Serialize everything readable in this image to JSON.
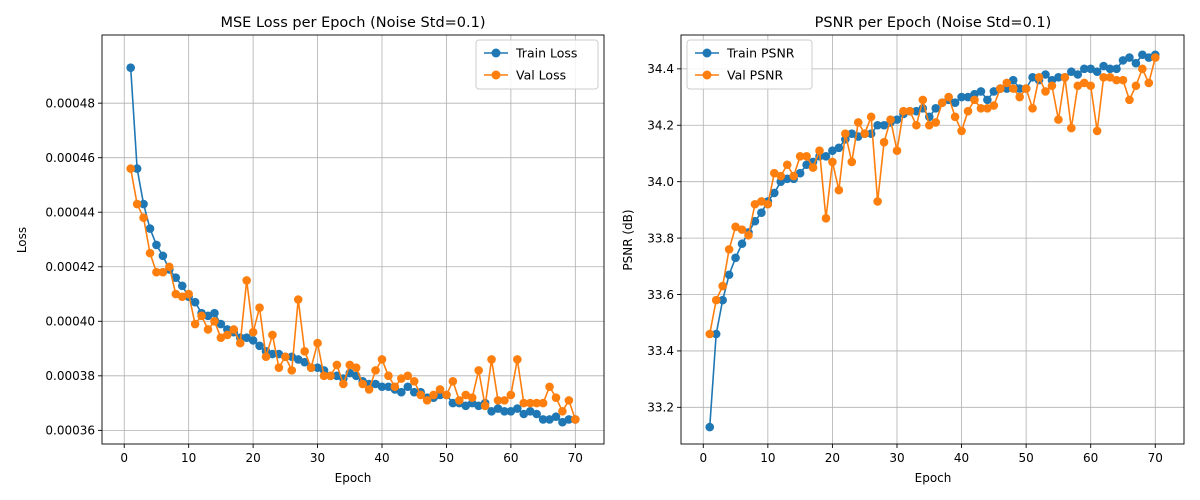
{
  "colors": {
    "train": "#1f77b4",
    "val": "#ff7f0e"
  },
  "chart_data": [
    {
      "type": "line",
      "title": "MSE Loss per Epoch (Noise Std=0.1)",
      "xlabel": "Epoch",
      "ylabel": "Loss",
      "xlim": [
        -3.45,
        74.45
      ],
      "ylim": [
        0.000355,
        0.000505
      ],
      "xticks": [
        0,
        10,
        20,
        30,
        40,
        50,
        60,
        70
      ],
      "yticks": [
        0.00036,
        0.00038,
        0.0004,
        0.00042,
        0.00044,
        0.00046,
        0.00048
      ],
      "ytick_labels": [
        "0.00036",
        "0.00038",
        "0.00040",
        "0.00042",
        "0.00044",
        "0.00046",
        "0.00048"
      ],
      "grid": true,
      "legend_position": "upper right",
      "x": [
        1,
        2,
        3,
        4,
        5,
        6,
        7,
        8,
        9,
        10,
        11,
        12,
        13,
        14,
        15,
        16,
        17,
        18,
        19,
        20,
        21,
        22,
        23,
        24,
        25,
        26,
        27,
        28,
        29,
        30,
        31,
        32,
        33,
        34,
        35,
        36,
        37,
        38,
        39,
        40,
        41,
        42,
        43,
        44,
        45,
        46,
        47,
        48,
        49,
        50,
        51,
        52,
        53,
        54,
        55,
        56,
        57,
        58,
        59,
        60,
        61,
        62,
        63,
        64,
        65,
        66,
        67,
        68,
        69,
        70
      ],
      "series": [
        {
          "name": "Train Loss",
          "color_key": "train",
          "values": [
            0.000493,
            0.000456,
            0.000443,
            0.000434,
            0.000428,
            0.000424,
            0.000419,
            0.000416,
            0.000413,
            0.000409,
            0.000407,
            0.000403,
            0.000402,
            0.000403,
            0.000399,
            0.000397,
            0.000396,
            0.000394,
            0.000394,
            0.000393,
            0.000391,
            0.000389,
            0.000388,
            0.000388,
            0.000387,
            0.000387,
            0.000386,
            0.000385,
            0.000383,
            0.000383,
            0.000382,
            0.00038,
            0.00038,
            0.000379,
            0.000381,
            0.00038,
            0.000378,
            0.000377,
            0.000377,
            0.000376,
            0.000376,
            0.000375,
            0.000374,
            0.000376,
            0.000374,
            0.000374,
            0.000372,
            0.000372,
            0.000373,
            0.000373,
            0.00037,
            0.00037,
            0.000369,
            0.00037,
            0.000369,
            0.00037,
            0.000367,
            0.000368,
            0.000367,
            0.000367,
            0.000368,
            0.000366,
            0.000367,
            0.000366,
            0.000364,
            0.000364,
            0.000365,
            0.000363,
            0.000364,
            0.000364
          ]
        },
        {
          "name": "Val Loss",
          "color_key": "val",
          "values": [
            0.000456,
            0.000443,
            0.000438,
            0.000425,
            0.000418,
            0.000418,
            0.00042,
            0.00041,
            0.000409,
            0.00041,
            0.000399,
            0.000402,
            0.000397,
            0.0004,
            0.000394,
            0.000395,
            0.000397,
            0.000392,
            0.000415,
            0.000396,
            0.000405,
            0.000387,
            0.000395,
            0.000383,
            0.000387,
            0.000382,
            0.000408,
            0.000389,
            0.000383,
            0.000392,
            0.00038,
            0.00038,
            0.000384,
            0.000377,
            0.000384,
            0.000383,
            0.000377,
            0.000375,
            0.000382,
            0.000386,
            0.00038,
            0.000376,
            0.000379,
            0.00038,
            0.000378,
            0.000373,
            0.000371,
            0.000373,
            0.000375,
            0.000373,
            0.000378,
            0.000371,
            0.000373,
            0.000372,
            0.000382,
            0.000369,
            0.000386,
            0.000371,
            0.000371,
            0.000373,
            0.000386,
            0.00037,
            0.00037,
            0.00037,
            0.00037,
            0.000376,
            0.000372,
            0.000367,
            0.000371,
            0.000364
          ]
        }
      ]
    },
    {
      "type": "line",
      "title": "PSNR per Epoch (Noise Std=0.1)",
      "xlabel": "Epoch",
      "ylabel": "PSNR (dB)",
      "xlim": [
        -3.45,
        74.45
      ],
      "ylim": [
        33.07,
        34.52
      ],
      "xticks": [
        0,
        10,
        20,
        30,
        40,
        50,
        60,
        70
      ],
      "yticks": [
        33.2,
        33.4,
        33.6,
        33.8,
        34.0,
        34.2,
        34.4
      ],
      "ytick_labels": [
        "33.2",
        "33.4",
        "33.6",
        "33.8",
        "34.0",
        "34.2",
        "34.4"
      ],
      "grid": true,
      "legend_position": "upper left",
      "x": [
        1,
        2,
        3,
        4,
        5,
        6,
        7,
        8,
        9,
        10,
        11,
        12,
        13,
        14,
        15,
        16,
        17,
        18,
        19,
        20,
        21,
        22,
        23,
        24,
        25,
        26,
        27,
        28,
        29,
        30,
        31,
        32,
        33,
        34,
        35,
        36,
        37,
        38,
        39,
        40,
        41,
        42,
        43,
        44,
        45,
        46,
        47,
        48,
        49,
        50,
        51,
        52,
        53,
        54,
        55,
        56,
        57,
        58,
        59,
        60,
        61,
        62,
        63,
        64,
        65,
        66,
        67,
        68,
        69,
        70
      ],
      "series": [
        {
          "name": "Train PSNR",
          "color_key": "train",
          "values": [
            33.13,
            33.46,
            33.58,
            33.67,
            33.73,
            33.78,
            33.82,
            33.86,
            33.89,
            33.93,
            33.96,
            34.0,
            34.01,
            34.01,
            34.03,
            34.06,
            34.07,
            34.09,
            34.09,
            34.11,
            34.12,
            34.15,
            34.17,
            34.16,
            34.17,
            34.17,
            34.2,
            34.2,
            34.21,
            34.22,
            34.24,
            34.25,
            34.25,
            34.26,
            34.23,
            34.26,
            34.28,
            34.29,
            34.28,
            34.3,
            34.3,
            34.31,
            34.32,
            34.29,
            34.32,
            34.33,
            34.33,
            34.36,
            34.33,
            34.33,
            34.37,
            34.36,
            34.38,
            34.36,
            34.37,
            34.37,
            34.39,
            34.38,
            34.4,
            34.4,
            34.39,
            34.41,
            34.4,
            34.4,
            34.43,
            34.44,
            34.42,
            34.45,
            34.44,
            34.45
          ]
        },
        {
          "name": "Val PSNR",
          "color_key": "val",
          "values": [
            33.46,
            33.58,
            33.63,
            33.76,
            33.84,
            33.83,
            33.81,
            33.92,
            33.93,
            33.92,
            34.03,
            34.02,
            34.06,
            34.02,
            34.09,
            34.09,
            34.05,
            34.11,
            33.87,
            34.07,
            33.97,
            34.17,
            34.07,
            34.21,
            34.17,
            34.23,
            33.93,
            34.14,
            34.22,
            34.11,
            34.25,
            34.25,
            34.2,
            34.29,
            34.2,
            34.21,
            34.28,
            34.3,
            34.23,
            34.18,
            34.25,
            34.29,
            34.26,
            34.26,
            34.27,
            34.33,
            34.35,
            34.33,
            34.3,
            34.33,
            34.26,
            34.37,
            34.32,
            34.34,
            34.22,
            34.37,
            34.19,
            34.34,
            34.35,
            34.34,
            34.18,
            34.37,
            34.37,
            34.36,
            34.36,
            34.29,
            34.34,
            34.4,
            34.35,
            34.44
          ]
        }
      ]
    }
  ]
}
